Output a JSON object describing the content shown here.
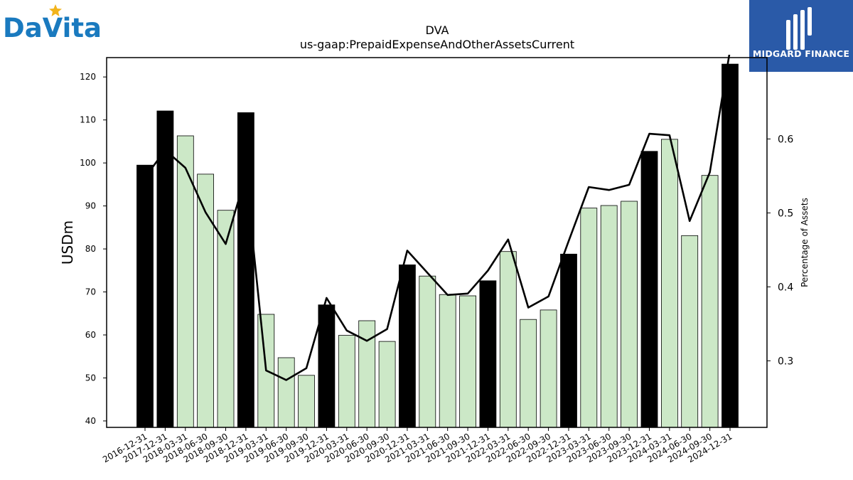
{
  "logos": {
    "left_text": "DaVita",
    "right_text": "MIDGARD FINANCE"
  },
  "colors": {
    "annual_bar": "#000000",
    "quarter_bar": "#cce8c7",
    "line": "#000000",
    "right_logo_bg": "#2a5aa8",
    "davita_blue": "#1a7abf",
    "davita_star": "#f2b41c"
  },
  "chart_data": {
    "type": "bar",
    "title": "DVA",
    "subtitle": "us-gaap:PrepaidExpenseAndOtherAssetsCurrent",
    "ylabel": "USDm",
    "y2label": "Percentage of Assets",
    "ylim": [
      38.5,
      124.5
    ],
    "y2lim": [
      0.21,
      0.71
    ],
    "yticks": [
      40,
      50,
      60,
      70,
      80,
      90,
      100,
      110,
      120
    ],
    "y2ticks": [
      "0.3",
      "0.4",
      "0.5",
      "0.6"
    ],
    "y2tick_values": [
      0.3,
      0.4,
      0.5,
      0.6
    ],
    "categories": [
      "2016-12-31",
      "2017-12-31",
      "2018-03-31",
      "2018-06-30",
      "2018-09-30",
      "2018-12-31",
      "2019-03-31",
      "2019-06-30",
      "2019-09-30",
      "2019-12-31",
      "2020-03-31",
      "2020-06-30",
      "2020-09-30",
      "2020-12-31",
      "2021-03-31",
      "2021-06-30",
      "2021-09-30",
      "2021-12-31",
      "2022-03-31",
      "2022-06-30",
      "2022-09-30",
      "2022-12-31",
      "2023-03-31",
      "2023-06-30",
      "2023-09-30",
      "2023-12-31",
      "2024-03-31",
      "2024-06-30",
      "2024-09-30",
      "2024-12-31"
    ],
    "series": [
      {
        "values": [
          99.5,
          112.1,
          106.3,
          97.4,
          89.0,
          111.7,
          64.8,
          54.7,
          50.6,
          67.0,
          59.9,
          63.3,
          58.5,
          76.3,
          73.7,
          69.4,
          69.1,
          72.6,
          79.4,
          63.6,
          65.8,
          78.8,
          89.5,
          90.1,
          91.1,
          102.7,
          105.5,
          83.1,
          97.1,
          123.0
        ],
        "annual": [
          true,
          true,
          false,
          false,
          false,
          true,
          false,
          false,
          false,
          true,
          false,
          false,
          false,
          true,
          false,
          false,
          false,
          true,
          false,
          false,
          false,
          true,
          false,
          false,
          false,
          true,
          false,
          false,
          false,
          true
        ]
      },
      {
        "axis": "right",
        "type": "line",
        "values": [
          0.548,
          0.585,
          0.561,
          0.501,
          0.458,
          0.551,
          0.287,
          0.274,
          0.29,
          0.385,
          0.341,
          0.327,
          0.343,
          0.449,
          0.419,
          0.389,
          0.391,
          0.422,
          0.464,
          0.372,
          0.387,
          0.462,
          0.535,
          0.531,
          0.538,
          0.607,
          0.605,
          0.489,
          0.555,
          0.72
        ]
      }
    ]
  }
}
